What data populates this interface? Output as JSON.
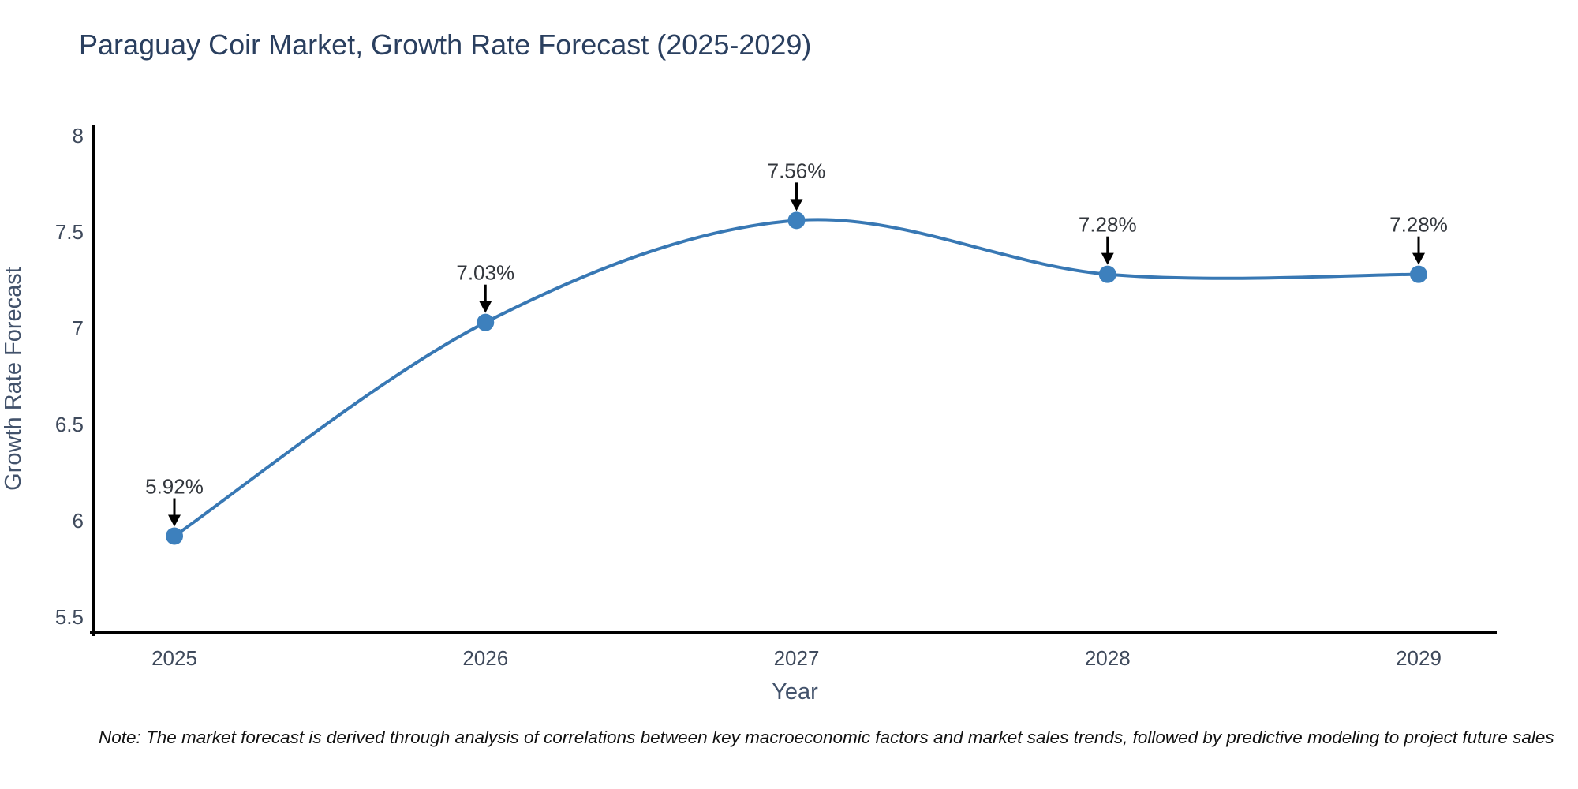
{
  "title": "Paraguay Coir Market, Growth Rate Forecast (2025-2029)",
  "note": "Note: The market forecast is derived through analysis of correlations between key macroeconomic factors and market sales trends, followed by predictive modeling to project future sales",
  "chart_data": {
    "type": "line",
    "title": "Paraguay Coir Market, Growth Rate Forecast (2025-2029)",
    "xlabel": "Year",
    "ylabel": "Growth Rate Forecast",
    "categories": [
      "2025",
      "2026",
      "2027",
      "2028",
      "2029"
    ],
    "values": [
      5.92,
      7.03,
      7.56,
      7.28,
      7.28
    ],
    "point_labels": [
      "5.92%",
      "7.03%",
      "7.56%",
      "7.28%",
      "7.28%"
    ],
    "yticks": [
      5.5,
      6,
      6.5,
      7,
      7.5,
      8
    ],
    "ytick_labels": [
      "5.5",
      "6",
      "6.5",
      "7",
      "7.5",
      "8"
    ],
    "ylim": [
      5.42,
      8.06
    ],
    "grid": false,
    "legend": "none",
    "line_shape": "spline",
    "annotation_arrows": true,
    "colors": {
      "line": "#3878b4",
      "marker": "#3d80bd",
      "axis": "#000000",
      "arrow": "#000000",
      "title": "#2a3f5f",
      "axis_title": "#42526b",
      "tick_label": "#3f4a5c",
      "annotation_text": "#33373d",
      "note_text": "#111111",
      "background": "#ffffff"
    }
  }
}
